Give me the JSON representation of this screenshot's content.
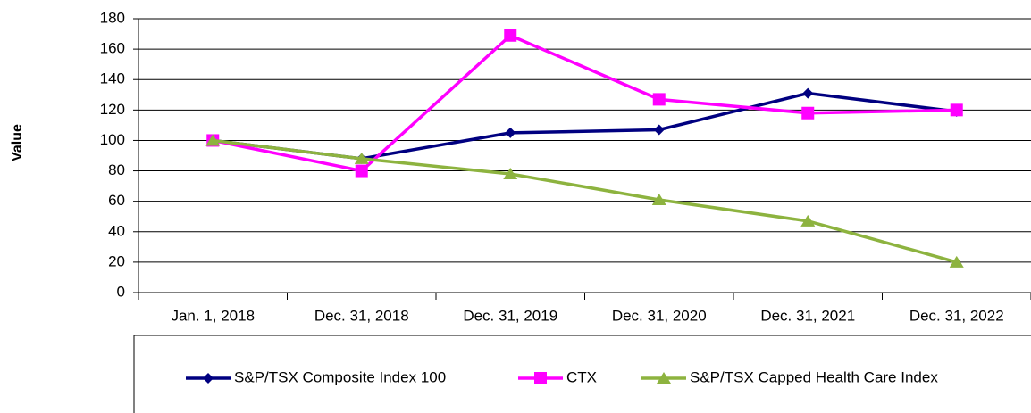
{
  "chart_data": {
    "type": "line",
    "y_label": "Value",
    "categories": [
      "Jan. 1, 2018",
      "Dec. 31, 2018",
      "Dec. 31, 2019",
      "Dec. 31, 2020",
      "Dec. 31, 2021",
      "Dec. 31, 2022"
    ],
    "series": [
      {
        "name": "S&P/TSX Composite Index 100",
        "color": "#000080",
        "marker": "diamond",
        "values": [
          100,
          88,
          105,
          107,
          131,
          119
        ]
      },
      {
        "name": "CTX",
        "color": "#ff00ff",
        "marker": "square",
        "values": [
          100,
          80,
          169,
          127,
          118,
          120
        ]
      },
      {
        "name": "S&P/TSX Capped Health Care Index",
        "color": "#8db33f",
        "marker": "triangle",
        "values": [
          100,
          88,
          78,
          61,
          47,
          20
        ]
      }
    ],
    "ylim": [
      0,
      180
    ],
    "yticks": [
      0,
      20,
      40,
      60,
      80,
      100,
      120,
      140,
      160,
      180
    ],
    "grid": true
  }
}
